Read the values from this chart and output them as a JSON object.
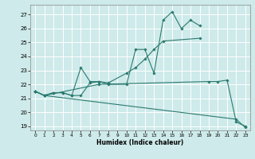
{
  "xlabel": "Humidex (Indice chaleur)",
  "xlim": [
    -0.5,
    23.5
  ],
  "ylim": [
    18.7,
    27.7
  ],
  "yticks": [
    19,
    20,
    21,
    22,
    23,
    24,
    25,
    26,
    27
  ],
  "xticks": [
    0,
    1,
    2,
    3,
    4,
    5,
    6,
    7,
    8,
    9,
    10,
    11,
    12,
    13,
    14,
    15,
    16,
    17,
    18,
    19,
    20,
    21,
    22,
    23
  ],
  "line_color": "#2a7a6e",
  "background_color": "#ceeaea",
  "grid_color": "#ffffff",
  "series": [
    {
      "x": [
        0,
        1,
        2,
        3,
        4,
        5,
        6,
        7,
        8,
        10,
        11,
        12,
        13,
        14,
        15,
        16,
        17,
        18
      ],
      "y": [
        21.5,
        21.2,
        21.4,
        21.4,
        21.2,
        23.2,
        22.2,
        22.2,
        22.0,
        22.0,
        24.5,
        24.5,
        22.8,
        26.6,
        27.2,
        26.0,
        26.6,
        26.2
      ]
    },
    {
      "x": [
        0,
        1,
        2,
        3,
        4,
        5,
        6,
        7,
        8,
        10,
        11,
        12,
        13,
        14,
        18
      ],
      "y": [
        21.5,
        21.2,
        21.4,
        21.4,
        21.2,
        21.2,
        22.1,
        22.2,
        22.1,
        22.8,
        23.2,
        23.8,
        24.5,
        25.1,
        25.3
      ]
    },
    {
      "x": [
        0,
        1,
        7,
        19,
        20,
        21,
        22,
        23
      ],
      "y": [
        21.5,
        21.2,
        22.0,
        22.2,
        22.2,
        22.3,
        19.3,
        19.0
      ]
    },
    {
      "x": [
        0,
        1,
        22,
        23
      ],
      "y": [
        21.5,
        21.2,
        19.5,
        18.9
      ]
    }
  ]
}
